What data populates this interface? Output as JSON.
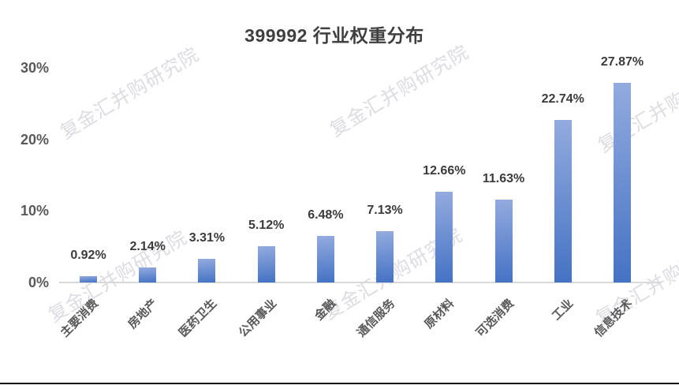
{
  "watermark": {
    "text": "复金汇并购研究院"
  },
  "chart_data": {
    "type": "bar",
    "title": "399992 行业权重分布",
    "categories": [
      "主要消费",
      "房地产",
      "医药卫生",
      "公用事业",
      "金融",
      "通信服务",
      "原材料",
      "可选消费",
      "工业",
      "信息技术"
    ],
    "values": [
      0.92,
      2.14,
      3.31,
      5.12,
      6.48,
      7.13,
      12.66,
      11.63,
      22.74,
      27.87
    ],
    "data_labels": [
      "0.92%",
      "2.14%",
      "3.31%",
      "5.12%",
      "6.48%",
      "7.13%",
      "12.66%",
      "11.63%",
      "22.74%",
      "27.87%"
    ],
    "xlabel": "",
    "ylabel": "",
    "ylim": [
      0,
      30
    ],
    "yticks": [
      {
        "value": 0,
        "label": "0%"
      },
      {
        "value": 10,
        "label": "10%"
      },
      {
        "value": 20,
        "label": "20%"
      },
      {
        "value": 30,
        "label": "30%"
      }
    ],
    "grid": false,
    "legend": "none",
    "colors": {
      "bar_gradient_top": "#93abdf",
      "bar_gradient_bottom": "#4472c4",
      "axis_line": "#d9d9d9",
      "title_text": "#3f3f3f",
      "tick_text": "#595959",
      "data_label_text": "#3b3b3b",
      "watermark_text": "#dcdce2"
    }
  }
}
